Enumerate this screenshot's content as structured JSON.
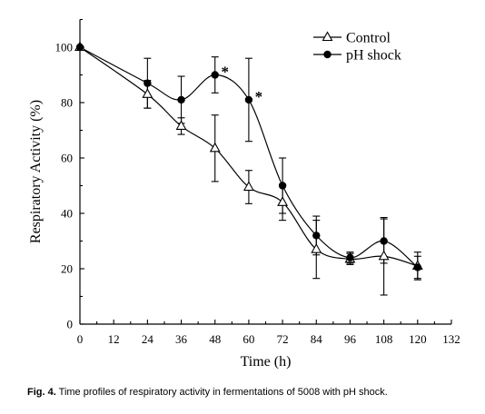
{
  "chart_data": {
    "type": "line",
    "xlabel": "Time (h)",
    "ylabel": "Respiratory Activity (%)",
    "xlim": [
      0,
      132
    ],
    "ylim": [
      0,
      110
    ],
    "xticks": [
      0,
      12,
      24,
      36,
      48,
      60,
      72,
      84,
      96,
      108,
      120,
      132
    ],
    "yticks": [
      0,
      20,
      40,
      60,
      80,
      100
    ],
    "grid": false,
    "legend": "top-right",
    "series": [
      {
        "name": "Control",
        "marker": "open-triangle",
        "color": "#000000",
        "x": [
          0,
          24,
          36,
          48,
          60,
          72,
          84,
          96,
          108,
          120
        ],
        "y": [
          100,
          83,
          71.5,
          63.5,
          49.5,
          44,
          27,
          23.5,
          24.5,
          21
        ],
        "error": [
          0,
          5,
          3,
          12,
          6,
          6.5,
          10.5,
          2,
          14,
          5
        ]
      },
      {
        "name": "pH shock",
        "marker": "filled-circle",
        "color": "#000000",
        "x": [
          0,
          24,
          36,
          48,
          60,
          72,
          84,
          96,
          108,
          120
        ],
        "y": [
          100,
          87,
          81,
          90,
          81,
          50,
          32,
          24,
          30,
          20.5
        ],
        "error": [
          0,
          9,
          8.5,
          6.5,
          15,
          10,
          7,
          2,
          8,
          4
        ]
      }
    ],
    "annotations": [
      {
        "text": "*",
        "x": 48,
        "y": 90
      },
      {
        "text": "*",
        "x": 60,
        "y": 81
      }
    ]
  },
  "caption": {
    "label": "Fig. 4.",
    "text": "Time profiles of respiratory activity in fermentations of 5008 with pH shock."
  }
}
